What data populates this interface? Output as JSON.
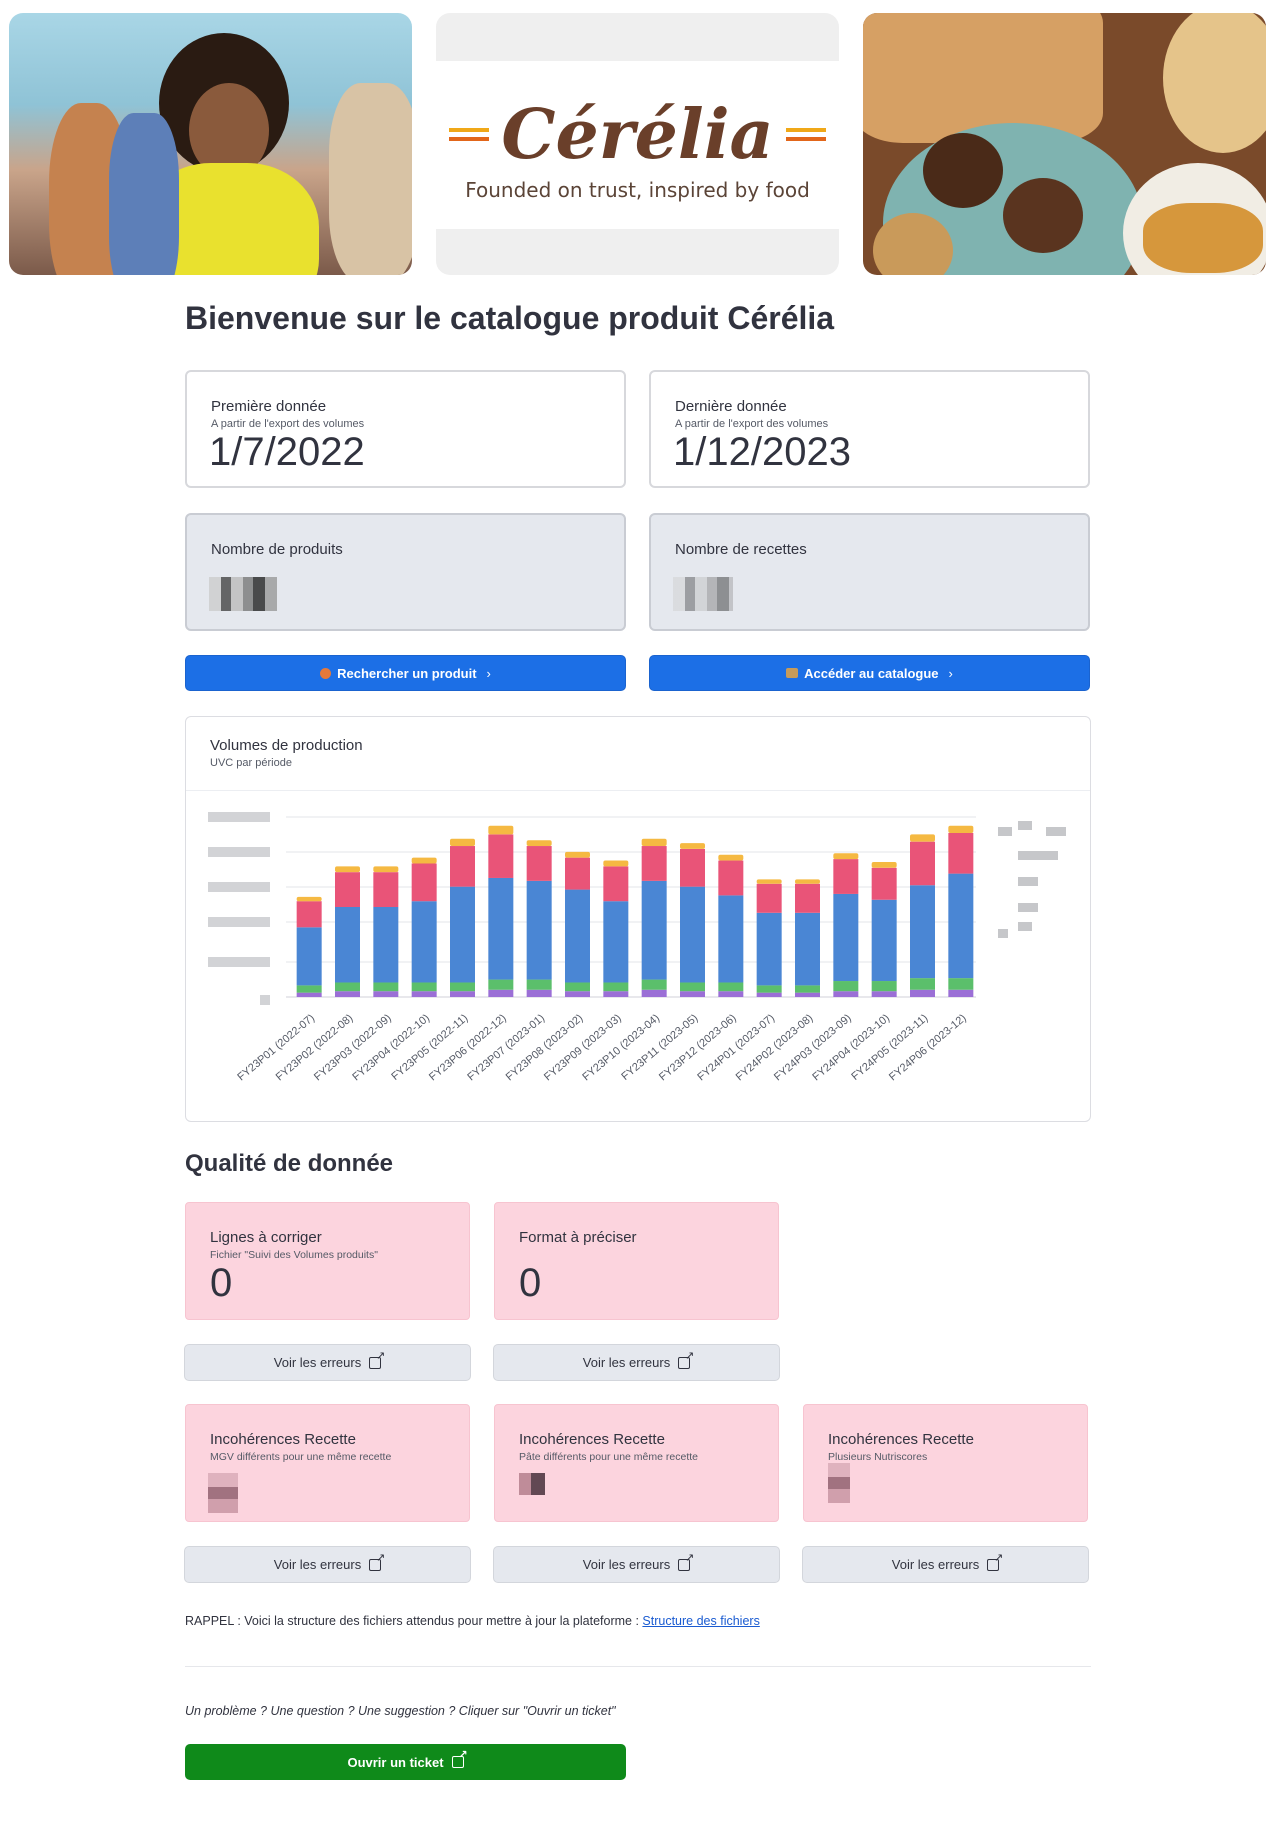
{
  "brand": {
    "name": "Cérélia",
    "tagline": "Founded on trust, inspired by food",
    "primary": "#6a3f2a",
    "accent1": "#f0a818",
    "accent2": "#e2661a"
  },
  "title": "Bienvenue sur le catalogue produit Cérélia",
  "metrics": {
    "first": {
      "label": "Première donnée",
      "sub": "A partir de l'export des volumes",
      "value": "1/7/2022"
    },
    "last": {
      "label": "Dernière donnée",
      "sub": "A partir de l'export des volumes",
      "value": "1/12/2023"
    },
    "products": {
      "label": "Nombre de produits"
    },
    "recipes": {
      "label": "Nombre de recettes"
    }
  },
  "buttons": {
    "search": "Rechercher un produit",
    "catalogue": "Accéder au catalogue",
    "view_errors": "Voir les erreurs",
    "ticket": "Ouvrir un ticket"
  },
  "chart": {
    "title": "Volumes de production",
    "subtitle": "UVC par période"
  },
  "chart_data": {
    "type": "bar",
    "stacked": true,
    "categories": [
      "FY23P01 (2022-07)",
      "FY23P02 (2022-08)",
      "FY23P03 (2022-09)",
      "FY23P04 (2022-10)",
      "FY23P05 (2022-11)",
      "FY23P06 (2022-12)",
      "FY23P07 (2023-01)",
      "FY23P08 (2023-02)",
      "FY23P09 (2023-03)",
      "FY23P10 (2023-04)",
      "FY23P11 (2023-05)",
      "FY23P12 (2023-06)",
      "FY24P01 (2023-07)",
      "FY24P02 (2023-08)",
      "FY24P03 (2023-09)",
      "FY24P04 (2023-10)",
      "FY24P05 (2023-11)",
      "FY24P06 (2023-12)"
    ],
    "series": [
      {
        "color": "#9b6fd6",
        "values": [
          1.5,
          2,
          2,
          2,
          2,
          2.5,
          2.5,
          2,
          2,
          2.5,
          2,
          2,
          1.5,
          1.5,
          2,
          2,
          2.5,
          2.5
        ]
      },
      {
        "color": "#5bbf6b",
        "values": [
          2.5,
          3,
          3,
          3,
          3,
          3.5,
          3.5,
          3,
          3,
          3.5,
          3,
          3,
          2.5,
          2.5,
          3.5,
          3.5,
          4,
          4
        ]
      },
      {
        "color": "#4a86d4",
        "values": [
          20,
          26,
          26,
          28,
          33,
          35,
          34,
          32,
          28,
          34,
          33,
          30,
          25,
          25,
          30,
          28,
          32,
          36
        ]
      },
      {
        "color": "#e95478",
        "values": [
          9,
          12,
          12,
          13,
          14,
          15,
          12,
          11,
          12,
          12,
          13,
          12,
          10,
          10,
          12,
          11,
          15,
          14
        ]
      },
      {
        "color": "#f5b942",
        "values": [
          1.5,
          2,
          2,
          2,
          2.5,
          3,
          2,
          2,
          2,
          2.5,
          2,
          2,
          1.5,
          1.5,
          2,
          2,
          2.5,
          2.5
        ]
      }
    ],
    "ylim": [
      0,
      62
    ],
    "grid": true,
    "legend": "right"
  },
  "quality": {
    "title": "Qualité de donnée",
    "lines": {
      "label": "Lignes à corriger",
      "sub": "Fichier \"Suivi des Volumes produits\"",
      "value": "0"
    },
    "format": {
      "label": "Format à préciser",
      "value": "0"
    },
    "mgv": {
      "label": "Incohérences Recette",
      "sub": "MGV différents pour une même recette"
    },
    "pate": {
      "label": "Incohérences Recette",
      "sub": "Pâte différents pour une même recette"
    },
    "nutri": {
      "label": "Incohérences Recette",
      "sub": "Plusieurs Nutriscores"
    }
  },
  "rappel": {
    "text": "RAPPEL : Voici la structure des fichiers attendus pour mettre à jour la plateforme :",
    "link": "Structure des fichiers"
  },
  "question": "Un problème ? Une question ? Une suggestion ? Cliquer sur \"Ouvrir un ticket\""
}
